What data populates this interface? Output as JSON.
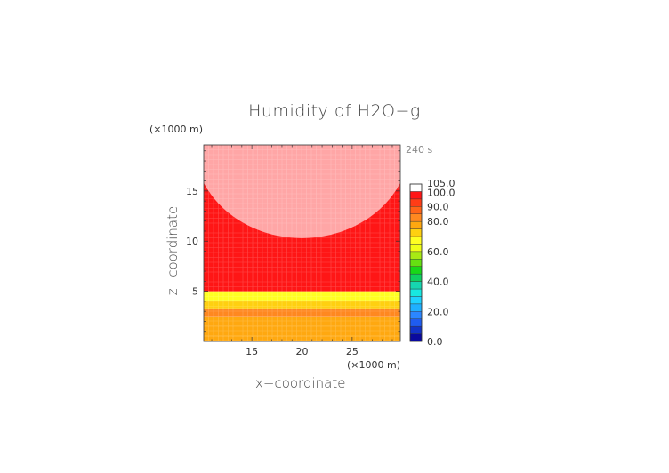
{
  "chart_data": {
    "type": "heatmap",
    "title": "Humidity of H2O−g",
    "xlabel": "x−coordinate",
    "ylabel": "z−coordinate",
    "x_unit": "(×1000 m)",
    "y_unit": "(×1000 m)",
    "time_label": "240 s",
    "xlim": [
      10.2,
      29.8
    ],
    "ylim": [
      0,
      19.6
    ],
    "x_ticks": [
      15,
      20,
      25
    ],
    "y_ticks": [
      5,
      10,
      15
    ],
    "x_tick_labels": [
      "15",
      "20",
      "25"
    ],
    "y_tick_labels": [
      "5",
      "10",
      "15"
    ],
    "grid": false,
    "legend": "right colorbar",
    "colorbar": {
      "levels": [
        0,
        5,
        10,
        15,
        20,
        25,
        30,
        35,
        40,
        45,
        50,
        55,
        60,
        65,
        70,
        75,
        80,
        85,
        90,
        95,
        100,
        105
      ],
      "labels": [
        "0.0",
        "20.0",
        "40.0",
        "60.0",
        "80.0",
        "90.0",
        "100.0",
        "105.0"
      ],
      "label_values": [
        0,
        20,
        40,
        60,
        80,
        90,
        100,
        105
      ],
      "colors": [
        "#0a0a9e",
        "#1233c8",
        "#1f5cf0",
        "#2b86ff",
        "#1fb0ff",
        "#1fd2ff",
        "#18e8e0",
        "#16d6b0",
        "#10d060",
        "#18d818",
        "#66e012",
        "#a8ea14",
        "#f0ff18",
        "#ffff22",
        "#ffd010",
        "#ffa810",
        "#ff8820",
        "#ff6418",
        "#ff3c16",
        "#ff1616",
        "#ffa6a6"
      ]
    },
    "bands": [
      {
        "z_range": [
          0,
          0.5
        ],
        "value": 75
      },
      {
        "z_range": [
          0.5,
          1.5
        ],
        "value": 77
      },
      {
        "z_range": [
          1.5,
          2.5
        ],
        "value": 78
      },
      {
        "z_range": [
          2.5,
          3.3
        ],
        "value": 82
      },
      {
        "z_range": [
          3.3,
          4.1
        ],
        "value": 72
      },
      {
        "z_range": [
          4.1,
          5.0
        ],
        "value": 67
      },
      {
        "z_range": [
          5.0,
          19.6
        ],
        "value": 97
      }
    ],
    "saturated_region": {
      "value": 102,
      "center_x": 20,
      "center_z": 19.8,
      "radius_x": 10.8,
      "radius_z": 9.5
    }
  }
}
